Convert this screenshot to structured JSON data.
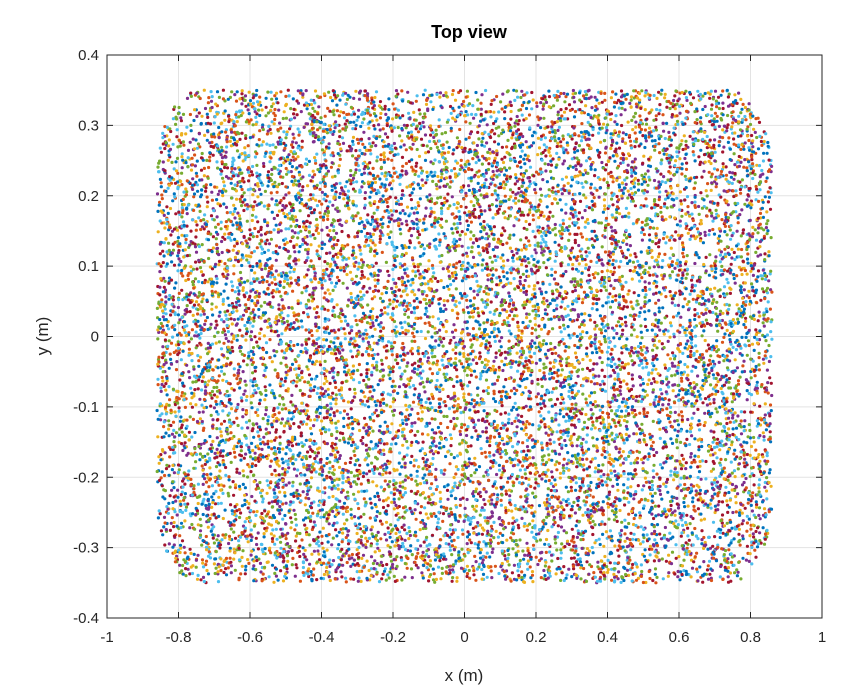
{
  "chart_data": {
    "type": "scatter",
    "title": "Top view",
    "xlabel": "x (m)",
    "ylabel": "y (m)",
    "xlim": [
      -1,
      1
    ],
    "ylim": [
      -0.4,
      0.4
    ],
    "xticks": [
      -1,
      -0.8,
      -0.6,
      -0.4,
      -0.2,
      0,
      0.2,
      0.4,
      0.6,
      0.8,
      1
    ],
    "yticks": [
      -0.4,
      -0.3,
      -0.2,
      -0.1,
      0,
      0.1,
      0.2,
      0.3,
      0.4
    ],
    "xtick_labels": [
      "-1",
      "-0.8",
      "-0.6",
      "-0.4",
      "-0.2",
      "0",
      "0.2",
      "0.4",
      "0.6",
      "0.8",
      "1"
    ],
    "ytick_labels": [
      "-0.4",
      "-0.3",
      "-0.2",
      "-0.1",
      "0",
      "0.1",
      "0.2",
      "0.3",
      "0.4"
    ],
    "grid": true,
    "point_region": {
      "x_range": [
        -0.86,
        0.86
      ],
      "y_range": [
        -0.35,
        0.35
      ],
      "shape": "rounded-rectangle",
      "approx_point_count": 14000
    },
    "series_colors": [
      "#0072bd",
      "#d95319",
      "#edb120",
      "#7e2f8e",
      "#77ac30",
      "#4dbeee",
      "#a2142f"
    ]
  }
}
